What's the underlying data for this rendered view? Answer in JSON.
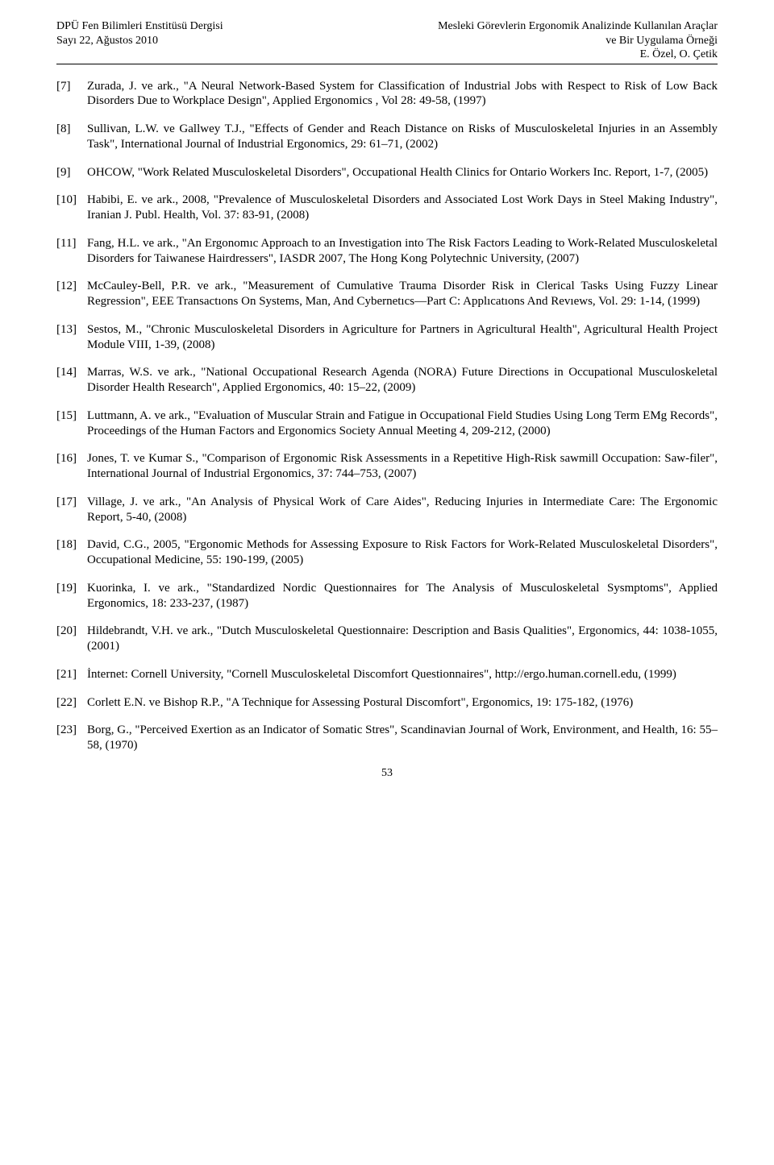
{
  "header": {
    "left_line1": "DPÜ Fen Bilimleri Enstitüsü Dergisi",
    "left_line2": "Sayı 22, Ağustos 2010",
    "right_line1": "Mesleki Görevlerin Ergonomik Analizinde Kullanılan Araçlar",
    "right_line2": "ve Bir Uygulama Örneği",
    "right_line3": "E. Özel, O. Çetik"
  },
  "refs": [
    {
      "num": "[7]",
      "text": "Zurada, J. ve ark., \"A Neural Network-Based System for Classification of Industrial Jobs with Respect to Risk of Low Back Disorders Due to Workplace Design\", Applied Ergonomics , Vol 28: 49-58, (1997)"
    },
    {
      "num": "[8]",
      "text": "Sullivan, L.W. ve Gallwey T.J., \"Effects of Gender and Reach Distance on Risks of Musculoskeletal Injuries in an Assembly Task\", International Journal of Industrial Ergonomics, 29: 61–71, (2002)"
    },
    {
      "num": "[9]",
      "text": "OHCOW, \"Work Related Musculoskeletal Disorders\", Occupational Health Clinics for Ontario Workers Inc. Report, 1-7, (2005)"
    },
    {
      "num": "[10]",
      "text": "Habibi, E. ve ark., 2008, \"Prevalence of Musculoskeletal Disorders and Associated Lost  Work Days in Steel Making Industry\", Iranian J. Publ. Health, Vol. 37: 83-91, (2008)"
    },
    {
      "num": "[11]",
      "text": "Fang, H.L. ve ark., \"An Ergonomıc Approach to an Investigation into The Risk Factors  Leading to Work-Related Musculoskeletal Disorders for Taiwanese Hairdressers\", IASDR 2007, The Hong Kong Polytechnic University, (2007)"
    },
    {
      "num": "[12]",
      "text": "McCauley-Bell, P.R. ve ark., \"Measurement of Cumulative Trauma Disorder Risk in Clerical Tasks Using Fuzzy Linear Regression\", EEE Transactıons On Systems, Man, And Cybernetıcs—Part C: Applıcatıons And Revıews, Vol. 29: 1-14, (1999)"
    },
    {
      "num": "[13]",
      "text": "Sestos, M., \"Chronic Musculoskeletal Disorders in Agriculture for Partners in Agricultural Health\", Agricultural Health Project Module VIII, 1-39, (2008)"
    },
    {
      "num": "[14]",
      "text": "Marras, W.S. ve ark., \"National Occupational Research Agenda (NORA) Future Directions in Occupational Musculoskeletal Disorder Health Research\", Applied Ergonomics, 40: 15–22, (2009)"
    },
    {
      "num": "[15]",
      "text": "Luttmann, A. ve ark., \"Evaluation of Muscular Strain and Fatigue in Occupational Field Studies Using Long Term EMg Records\", Proceedings of the Human Factors and Ergonomics Society Annual Meeting 4, 209-212, (2000)"
    },
    {
      "num": "[16]",
      "text": "Jones, T. ve Kumar S., \"Comparison of Ergonomic Risk Assessments in a Repetitive High-Risk sawmill Occupation: Saw-filer\", International Journal of Industrial Ergonomics, 37: 744–753, (2007)"
    },
    {
      "num": "[17]",
      "text": "Village, J. ve ark., \"An Analysis of Physical Work of Care Aides\", Reducing Injuries in Intermediate Care: The Ergonomic Report, 5-40, (2008)"
    },
    {
      "num": "[18]",
      "text": "David, C.G., 2005, \"Ergonomic Methods for Assessing Exposure to Risk Factors for Work-Related Musculoskeletal Disorders\", Occupational Medicine, 55: 190-199, (2005)"
    },
    {
      "num": "[19]",
      "text": "Kuorinka, I. ve ark., \"Standardized  Nordic Questionnaires for The Analysis of Musculoskeletal Sysmptoms\", Applied Ergonomics, 18: 233-237, (1987)"
    },
    {
      "num": "[20]",
      "text": "Hildebrandt, V.H. ve ark., \"Dutch Musculoskeletal Questionnaire: Description and Basis Qualities\", Ergonomics, 44: 1038-1055, (2001)"
    },
    {
      "num": "[21]",
      "text": "İnternet: Cornell University, \"Cornell Musculoskeletal Discomfort Questionnaires\", http://ergo.human.cornell.edu, (1999)"
    },
    {
      "num": "[22]",
      "text": "Corlett E.N. ve Bishop R.P., \"A Technique for Assessing Postural Discomfort\", Ergonomics, 19: 175-182, (1976)"
    },
    {
      "num": "[23]",
      "text": "Borg, G., \"Perceived Exertion as an Indicator of Somatic Stres\", Scandinavian Journal of Work, Environment, and Health, 16: 55–58, (1970)"
    }
  ],
  "page_number": "53"
}
